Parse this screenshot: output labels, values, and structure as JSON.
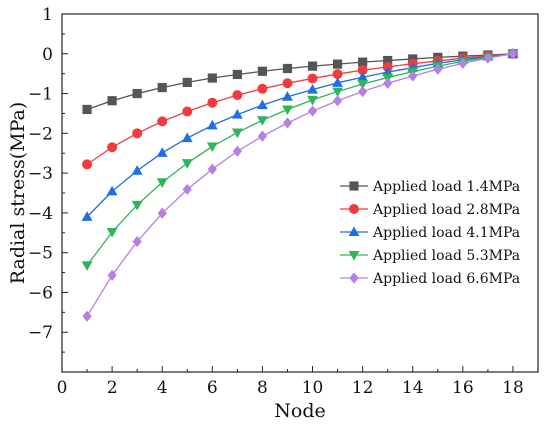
{
  "chart_data": {
    "type": "line",
    "xlabel": "Node",
    "ylabel": "Radial stress(MPa)",
    "xlim": [
      0,
      19
    ],
    "ylim": [
      -8,
      1
    ],
    "xticks": [
      0,
      2,
      4,
      6,
      8,
      10,
      12,
      14,
      16,
      18
    ],
    "yticks": [
      1,
      0,
      -1,
      -2,
      -3,
      -4,
      -5,
      -6,
      -7
    ],
    "grid": false,
    "legend_position": "right",
    "x": [
      1,
      2,
      3,
      4,
      5,
      6,
      7,
      8,
      9,
      10,
      11,
      12,
      13,
      14,
      15,
      16,
      17,
      18
    ],
    "series": [
      {
        "name": "Applied load 1.4MPa",
        "color": "#555555",
        "marker": "square",
        "values": [
          -1.4,
          -1.18,
          -1.0,
          -0.85,
          -0.72,
          -0.61,
          -0.52,
          -0.44,
          -0.37,
          -0.31,
          -0.26,
          -0.21,
          -0.17,
          -0.13,
          -0.09,
          -0.06,
          -0.03,
          0
        ]
      },
      {
        "name": "Applied load 2.8MPa",
        "color": "#f03c3c",
        "marker": "circle",
        "values": [
          -2.78,
          -2.35,
          -2.0,
          -1.7,
          -1.45,
          -1.23,
          -1.04,
          -0.88,
          -0.74,
          -0.62,
          -0.51,
          -0.41,
          -0.33,
          -0.25,
          -0.18,
          -0.11,
          -0.05,
          0
        ]
      },
      {
        "name": "Applied load 4.1MPa",
        "color": "#1f6ee6",
        "marker": "triangle-up",
        "values": [
          -4.1,
          -3.46,
          -2.94,
          -2.49,
          -2.12,
          -1.8,
          -1.53,
          -1.29,
          -1.08,
          -0.9,
          -0.73,
          -0.59,
          -0.46,
          -0.35,
          -0.24,
          -0.15,
          -0.07,
          0
        ]
      },
      {
        "name": "Applied load 5.3MPa",
        "color": "#2eb45a",
        "marker": "triangle-down",
        "values": [
          -5.32,
          -4.48,
          -3.8,
          -3.23,
          -2.75,
          -2.33,
          -1.98,
          -1.67,
          -1.4,
          -1.16,
          -0.95,
          -0.76,
          -0.6,
          -0.45,
          -0.31,
          -0.19,
          -0.09,
          0
        ]
      },
      {
        "name": "Applied load 6.6MPa",
        "color": "#b57fe6",
        "marker": "diamond",
        "values": [
          -6.6,
          -5.57,
          -4.72,
          -4.01,
          -3.41,
          -2.9,
          -2.45,
          -2.07,
          -1.74,
          -1.44,
          -1.18,
          -0.95,
          -0.74,
          -0.56,
          -0.39,
          -0.24,
          -0.11,
          0
        ]
      }
    ]
  }
}
